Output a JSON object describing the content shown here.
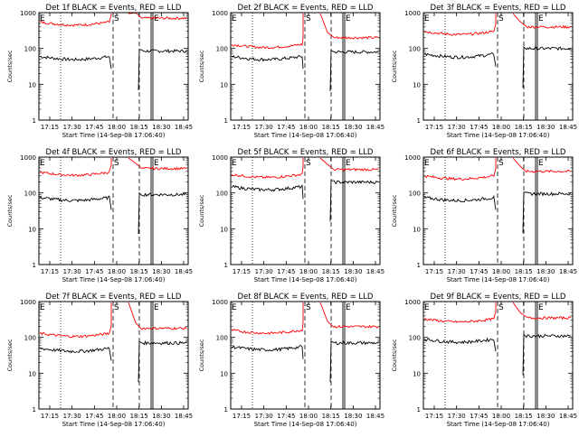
{
  "figure": {
    "ylabel": "Counts/sec",
    "xlabel": "Start Time (14-Sep-08 17:06:40)",
    "xticks": [
      "17:15",
      "17:30",
      "17:45",
      "18:00",
      "18:15",
      "18:30",
      "18:45"
    ],
    "yticks": [
      "1",
      "10",
      "100",
      "1000"
    ],
    "marker_labels": {
      "left": "E",
      "middle": "S",
      "right": "E"
    },
    "colors": {
      "events": "#000000",
      "lld": "#ff0000",
      "axis": "#000000"
    }
  },
  "chart_data": [
    {
      "type": "line",
      "title": "Det 1f BLACK = Events, RED = LLD",
      "xlabel": "Start Time (14-Sep-08 17:06:40)",
      "ylabel": "Counts/sec",
      "ylim": [
        1,
        1000
      ],
      "yscale": "log",
      "series": [
        {
          "name": "Events",
          "color": "#000000",
          "levels": [
            60,
            85
          ]
        },
        {
          "name": "LLD",
          "color": "#ff0000",
          "levels": [
            550,
            700
          ]
        }
      ]
    },
    {
      "type": "line",
      "title": "Det 2f BLACK = Events, RED = LLD",
      "xlabel": "Start Time (14-Sep-08 17:06:40)",
      "ylabel": "Counts/sec",
      "ylim": [
        1,
        1000
      ],
      "yscale": "log",
      "series": [
        {
          "name": "Events",
          "color": "#000000",
          "levels": [
            60,
            80
          ]
        },
        {
          "name": "LLD",
          "color": "#ff0000",
          "levels": [
            130,
            200
          ]
        }
      ]
    },
    {
      "type": "line",
      "title": "Det 3f BLACK = Events, RED = LLD",
      "xlabel": "Start Time (14-Sep-08 17:06:40)",
      "ylabel": "Counts/sec",
      "ylim": [
        1,
        1000
      ],
      "yscale": "log",
      "series": [
        {
          "name": "Events",
          "color": "#000000",
          "levels": [
            70,
            100
          ]
        },
        {
          "name": "LLD",
          "color": "#ff0000",
          "levels": [
            300,
            400
          ]
        }
      ]
    },
    {
      "type": "line",
      "title": "Det 4f BLACK = Events, RED = LLD",
      "xlabel": "Start Time (14-Sep-08 17:06:40)",
      "ylabel": "Counts/sec",
      "ylim": [
        1,
        1000
      ],
      "yscale": "log",
      "series": [
        {
          "name": "Events",
          "color": "#000000",
          "levels": [
            75,
            90
          ]
        },
        {
          "name": "LLD",
          "color": "#ff0000",
          "levels": [
            380,
            480
          ]
        }
      ]
    },
    {
      "type": "line",
      "title": "Det 5f BLACK = Events, RED = LLD",
      "xlabel": "Start Time (14-Sep-08 17:06:40)",
      "ylabel": "Counts/sec",
      "ylim": [
        1,
        1000
      ],
      "yscale": "log",
      "series": [
        {
          "name": "Events",
          "color": "#000000",
          "levels": [
            150,
            200
          ]
        },
        {
          "name": "LLD",
          "color": "#ff0000",
          "levels": [
            330,
            450
          ]
        }
      ]
    },
    {
      "type": "line",
      "title": "Det 6f BLACK = Events, RED = LLD",
      "xlabel": "Start Time (14-Sep-08 17:06:40)",
      "ylabel": "Counts/sec",
      "ylim": [
        1,
        1000
      ],
      "yscale": "log",
      "series": [
        {
          "name": "Events",
          "color": "#000000",
          "levels": [
            75,
            95
          ]
        },
        {
          "name": "LLD",
          "color": "#ff0000",
          "levels": [
            300,
            400
          ]
        }
      ]
    },
    {
      "type": "line",
      "title": "Det 7f BLACK = Events, RED = LLD",
      "xlabel": "Start Time (14-Sep-08 17:06:40)",
      "ylabel": "Counts/sec",
      "ylim": [
        1,
        1000
      ],
      "yscale": "log",
      "series": [
        {
          "name": "Events",
          "color": "#000000",
          "levels": [
            50,
            70
          ]
        },
        {
          "name": "LLD",
          "color": "#ff0000",
          "levels": [
            130,
            180
          ]
        }
      ]
    },
    {
      "type": "line",
      "title": "Det 8f BLACK = Events, RED = LLD",
      "xlabel": "Start Time (14-Sep-08 17:06:40)",
      "ylabel": "Counts/sec",
      "ylim": [
        1,
        1000
      ],
      "yscale": "log",
      "series": [
        {
          "name": "Events",
          "color": "#000000",
          "levels": [
            55,
            70
          ]
        },
        {
          "name": "LLD",
          "color": "#ff0000",
          "levels": [
            160,
            200
          ]
        }
      ]
    },
    {
      "type": "line",
      "title": "Det 9f BLACK = Events, RED = LLD",
      "xlabel": "Start Time (14-Sep-08 17:06:40)",
      "ylabel": "Counts/sec",
      "ylim": [
        1,
        1000
      ],
      "yscale": "log",
      "series": [
        {
          "name": "Events",
          "color": "#000000",
          "levels": [
            90,
            110
          ]
        },
        {
          "name": "LLD",
          "color": "#ff0000",
          "levels": [
            330,
            350
          ]
        }
      ]
    }
  ]
}
